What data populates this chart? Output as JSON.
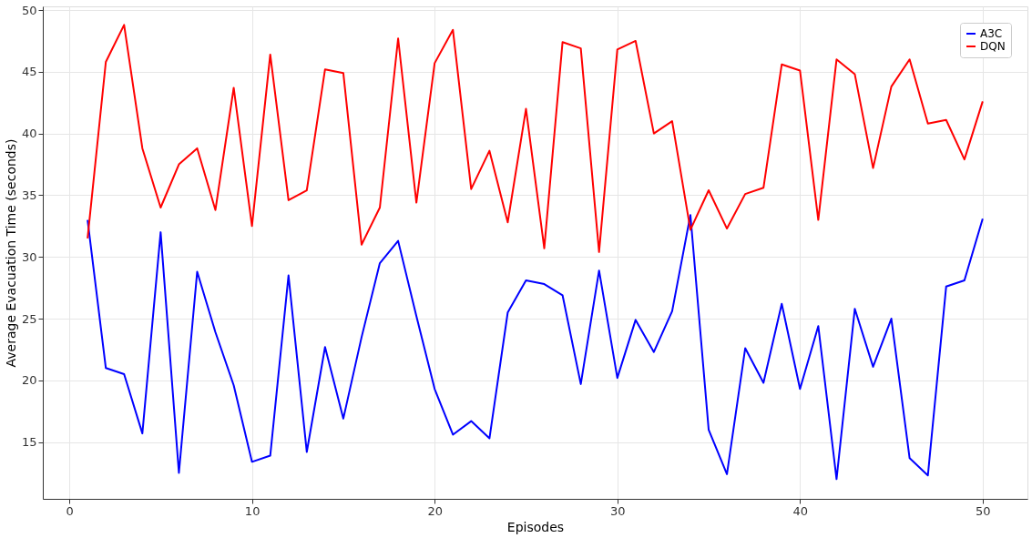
{
  "chart_data": {
    "type": "line",
    "xlabel": "Episodes",
    "ylabel": "Average Evacuation Time (seconds)",
    "x": [
      1,
      2,
      3,
      4,
      5,
      6,
      7,
      8,
      9,
      10,
      11,
      12,
      13,
      14,
      15,
      16,
      17,
      18,
      19,
      20,
      21,
      22,
      23,
      24,
      25,
      26,
      27,
      28,
      29,
      30,
      31,
      32,
      33,
      34,
      35,
      36,
      37,
      38,
      39,
      40,
      41,
      42,
      43,
      44,
      45,
      46,
      47,
      48,
      49,
      50
    ],
    "series": [
      {
        "name": "A3C",
        "color": "#0000ff",
        "values": [
          33.0,
          21.0,
          20.5,
          15.7,
          32.0,
          12.5,
          28.8,
          23.9,
          19.6,
          13.4,
          13.9,
          28.5,
          14.2,
          22.7,
          16.9,
          23.5,
          29.5,
          31.3,
          25.2,
          19.3,
          15.6,
          16.7,
          15.3,
          25.5,
          28.1,
          27.8,
          26.9,
          19.7,
          28.9,
          20.2,
          24.9,
          22.3,
          25.6,
          33.4,
          16.0,
          12.4,
          22.6,
          19.8,
          26.2,
          19.3,
          24.4,
          12.0,
          25.8,
          21.1,
          25.0,
          13.7,
          12.3,
          27.6,
          28.1,
          33.1
        ]
      },
      {
        "name": "DQN",
        "color": "#ff0000",
        "values": [
          31.5,
          45.8,
          48.8,
          38.8,
          34.0,
          37.5,
          38.8,
          33.8,
          43.7,
          32.5,
          46.4,
          34.6,
          35.4,
          45.2,
          44.9,
          31.0,
          34.0,
          47.7,
          34.4,
          45.7,
          48.4,
          35.5,
          38.6,
          32.8,
          42.0,
          30.7,
          47.4,
          46.9,
          30.4,
          46.8,
          47.5,
          40.0,
          41.0,
          32.2,
          35.4,
          32.3,
          35.1,
          35.6,
          45.6,
          45.1,
          33.0,
          46.0,
          44.8,
          37.2,
          43.8,
          46.0,
          40.8,
          41.1,
          37.9,
          42.6
        ]
      }
    ],
    "xlim": [
      -1.45,
      52.45
    ],
    "xticks": [
      0,
      10,
      20,
      30,
      40,
      50
    ],
    "ylim": [
      10.4,
      50.3
    ],
    "yticks": [
      15,
      20,
      25,
      30,
      35,
      40,
      45,
      50
    ],
    "grid": true,
    "legend": "top right",
    "marker": "none",
    "line_style": "solid"
  }
}
